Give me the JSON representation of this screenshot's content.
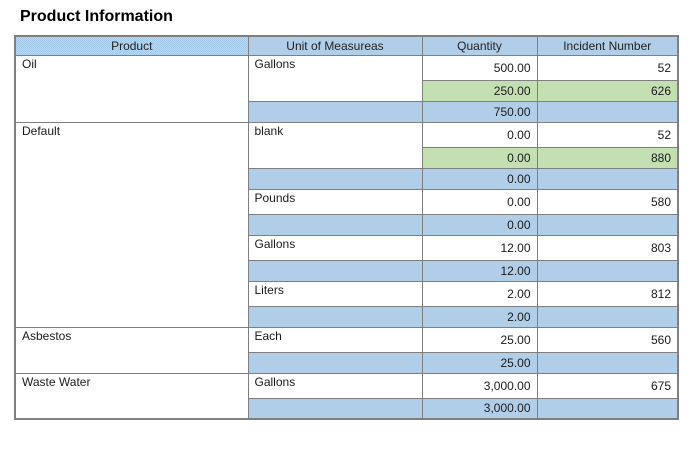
{
  "page": {
    "title": "Product Information"
  },
  "colors": {
    "header_and_subtotal_blue": "#aecde9",
    "highlight_green": "#c3dfb1",
    "border_gray": "#7f7f7f",
    "row_white": "#ffffff"
  },
  "table": {
    "columns": [
      {
        "label": "Product"
      },
      {
        "label": "Unit of Measureas"
      },
      {
        "label": "Quantity"
      },
      {
        "label": "Incident Number"
      }
    ],
    "groups": [
      {
        "product": "Oil",
        "units": [
          {
            "unit": "Gallons",
            "entries": [
              {
                "quantity": "500.00",
                "incident": "52",
                "highlight": false
              },
              {
                "quantity": "250.00",
                "incident": "626",
                "highlight": true
              }
            ],
            "subtotal": "750.00"
          }
        ]
      },
      {
        "product": "Default",
        "units": [
          {
            "unit": "blank",
            "entries": [
              {
                "quantity": "0.00",
                "incident": "52",
                "highlight": false
              },
              {
                "quantity": "0.00",
                "incident": "880",
                "highlight": true
              }
            ],
            "subtotal": "0.00"
          },
          {
            "unit": "Pounds",
            "entries": [
              {
                "quantity": "0.00",
                "incident": "580",
                "highlight": false
              }
            ],
            "subtotal": "0.00"
          },
          {
            "unit": "Gallons",
            "entries": [
              {
                "quantity": "12.00",
                "incident": "803",
                "highlight": false
              }
            ],
            "subtotal": "12.00"
          },
          {
            "unit": "Liters",
            "entries": [
              {
                "quantity": "2.00",
                "incident": "812",
                "highlight": false
              }
            ],
            "subtotal": "2.00"
          }
        ]
      },
      {
        "product": "Asbestos",
        "units": [
          {
            "unit": "Each",
            "entries": [
              {
                "quantity": "25.00",
                "incident": "560",
                "highlight": false
              }
            ],
            "subtotal": "25.00"
          }
        ]
      },
      {
        "product": "Waste Water",
        "units": [
          {
            "unit": "Gallons",
            "entries": [
              {
                "quantity": "3,000.00",
                "incident": "675",
                "highlight": false
              }
            ],
            "subtotal": "3,000.00"
          }
        ]
      }
    ]
  }
}
